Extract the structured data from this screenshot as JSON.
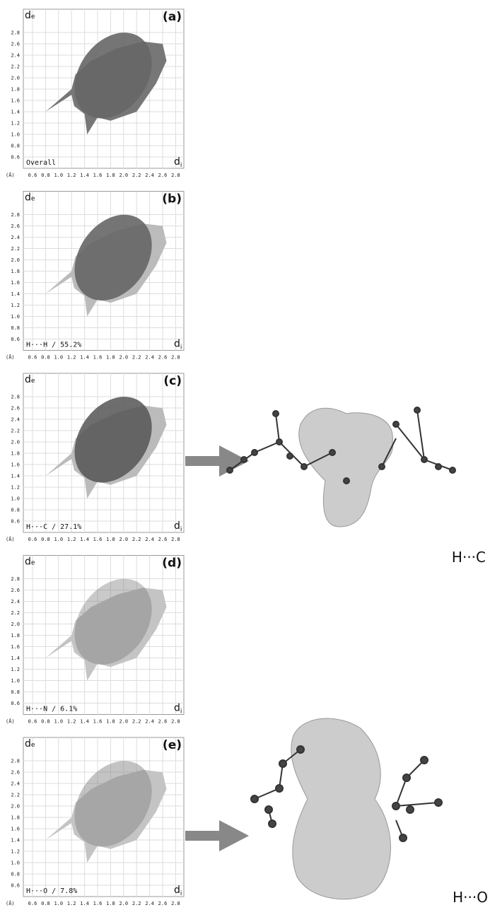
{
  "axis": {
    "y_label": "d",
    "y_sub": "e",
    "x_label": "d",
    "x_sub": "i",
    "unit": "(Å)",
    "yticks": [
      "0.6",
      "0.8",
      "1.0",
      "1.2",
      "1.4",
      "1.6",
      "1.8",
      "2.0",
      "2.2",
      "2.4",
      "2.6",
      "2.8"
    ],
    "xticks": [
      "0.6",
      "0.8",
      "1.0",
      "1.2",
      "1.4",
      "1.6",
      "1.8",
      "2.0",
      "2.2",
      "2.4",
      "2.6",
      "2.8"
    ]
  },
  "panels": [
    {
      "label": "(a)",
      "caption": "Overall"
    },
    {
      "label": "(b)",
      "caption": "H···H / 55.2%"
    },
    {
      "label": "(c)",
      "caption": "H···C / 27.1%"
    },
    {
      "label": "(d)",
      "caption": "H···N / 6.1%"
    },
    {
      "label": "(e)",
      "caption": "H···O / 7.8%"
    }
  ],
  "molecule_labels": [
    "H···C",
    "H···O"
  ]
}
